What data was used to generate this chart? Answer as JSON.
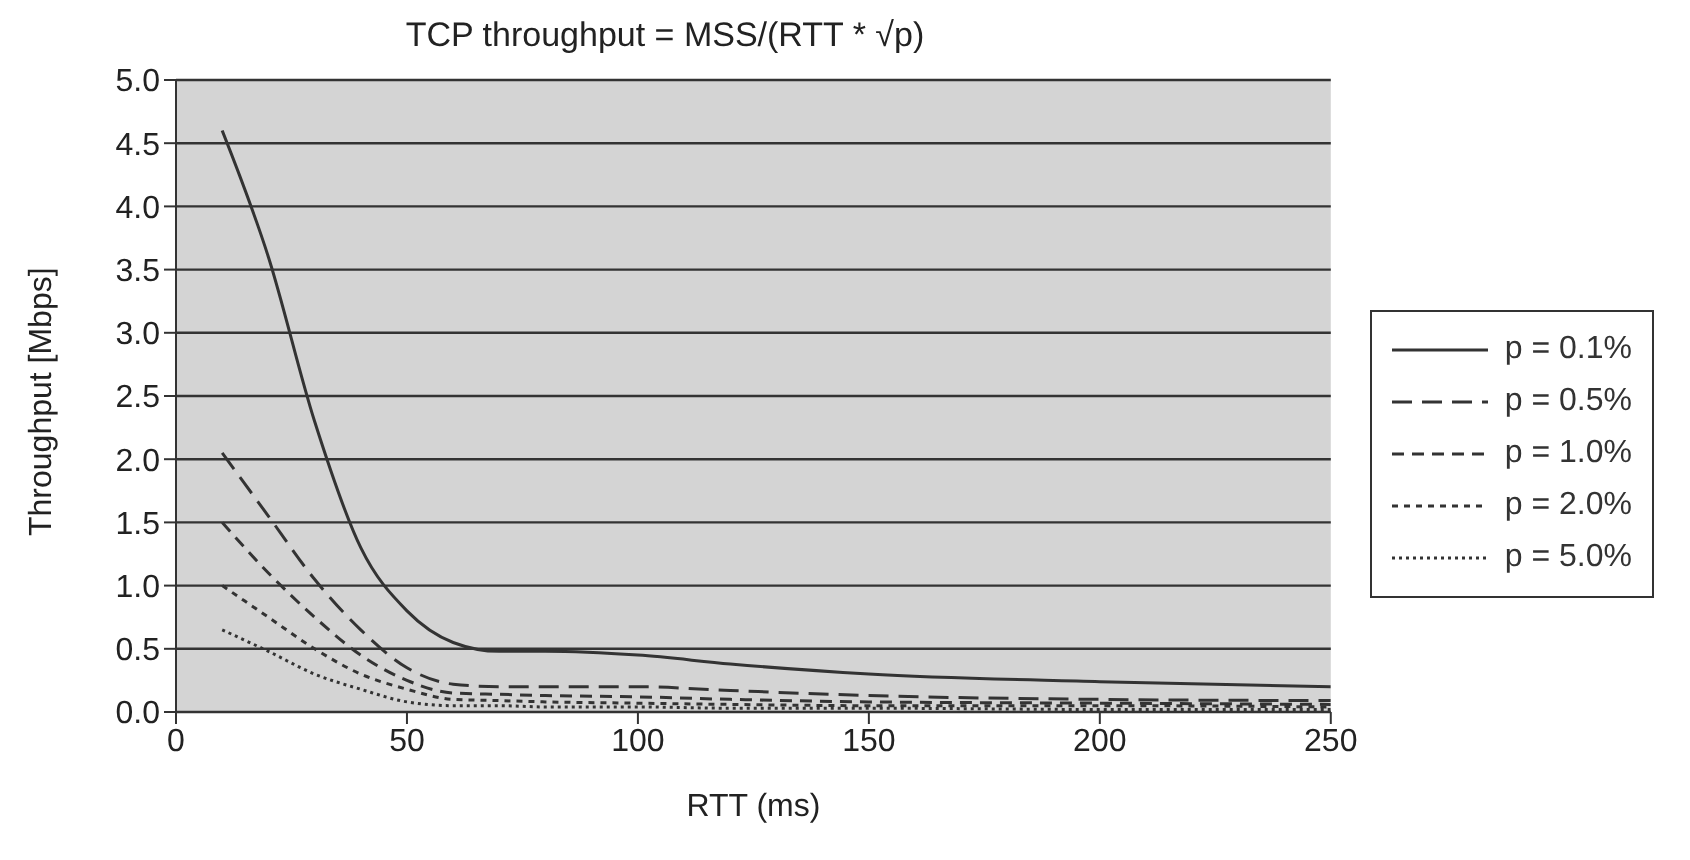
{
  "chart_data": {
    "type": "line",
    "title": "TCP throughput = MSS/(RTT * √p)",
    "xlabel": "RTT (ms)",
    "ylabel": "Throughput [Mbps]",
    "xlim": [
      0,
      250
    ],
    "xticks": [
      0,
      50,
      100,
      150,
      200,
      250
    ],
    "ylim": [
      0,
      5
    ],
    "yticks": [
      {
        "value": 0,
        "label": "0.0"
      },
      {
        "value": 0.5,
        "label": "0.5"
      },
      {
        "value": 1,
        "label": "1.0"
      },
      {
        "value": 1.5,
        "label": "1.5"
      },
      {
        "value": 2,
        "label": "2.0"
      },
      {
        "value": 2.5,
        "label": "2.5"
      },
      {
        "value": 3,
        "label": "3.0"
      },
      {
        "value": 3.5,
        "label": "3.5"
      },
      {
        "value": 4,
        "label": "4.0"
      },
      {
        "value": 4.5,
        "label": "4.5"
      },
      {
        "value": 5,
        "label": "5.0"
      }
    ],
    "grid": "y",
    "legend": "right",
    "marker": "none",
    "x": [
      10,
      20,
      30,
      40,
      50,
      60,
      70,
      80,
      100,
      120,
      150,
      200,
      250
    ],
    "series": [
      {
        "name": "p = 0.1%",
        "color": "#333333",
        "line_style": "solid",
        "values": [
          4.6,
          3.6,
          2.3,
          1.3,
          0.8,
          0.55,
          0.48,
          0.48,
          0.45,
          0.38,
          0.3,
          0.24,
          0.2
        ]
      },
      {
        "name": "p = 0.5%",
        "color": "#333333",
        "line_style": "dashed",
        "values": [
          2.05,
          1.55,
          1.05,
          0.65,
          0.35,
          0.22,
          0.2,
          0.2,
          0.2,
          0.17,
          0.13,
          0.1,
          0.09
        ]
      },
      {
        "name": "p = 1.0%",
        "color": "#333333",
        "line_style": "dashed",
        "values": [
          1.5,
          1.1,
          0.75,
          0.45,
          0.25,
          0.15,
          0.14,
          0.13,
          0.12,
          0.1,
          0.08,
          0.07,
          0.06
        ]
      },
      {
        "name": "p = 2.0%",
        "color": "#333333",
        "line_style": "dashed",
        "values": [
          1.0,
          0.75,
          0.5,
          0.3,
          0.18,
          0.1,
          0.09,
          0.08,
          0.07,
          0.06,
          0.05,
          0.05,
          0.04
        ]
      },
      {
        "name": "p = 5.0%",
        "color": "#333333",
        "line_style": "dotted",
        "values": [
          0.65,
          0.48,
          0.3,
          0.18,
          0.08,
          0.05,
          0.05,
          0.04,
          0.04,
          0.03,
          0.03,
          0.02,
          0.02
        ]
      }
    ]
  }
}
